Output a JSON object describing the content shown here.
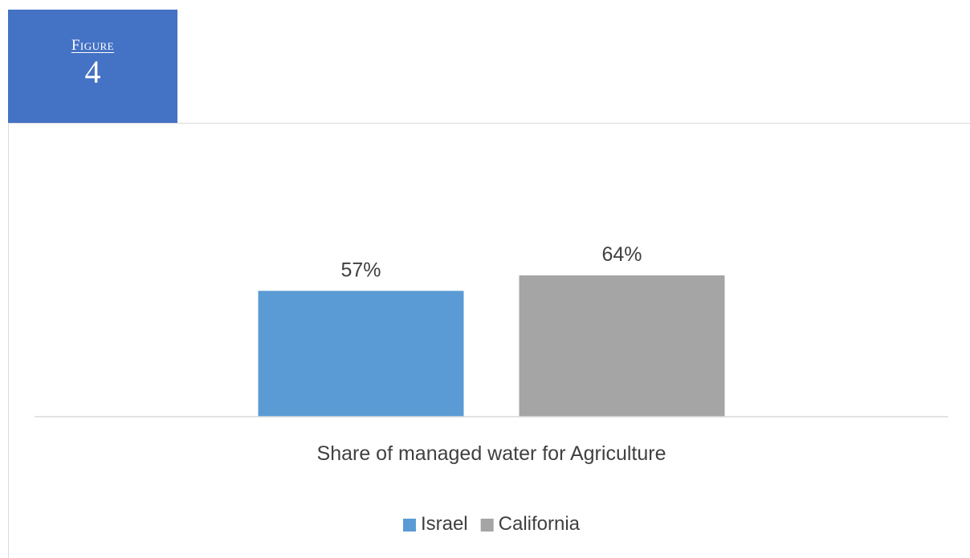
{
  "figure": {
    "label": "Figure",
    "number": "4"
  },
  "colors": {
    "badge": "#4472c4",
    "israel": "#5b9bd5",
    "california": "#a5a5a5",
    "axis": "#d9d9d9"
  },
  "chart_data": {
    "type": "bar",
    "categories": [
      "Share of managed water for Agriculture"
    ],
    "series": [
      {
        "name": "Israel",
        "values": [
          57
        ],
        "color": "#5b9bd5"
      },
      {
        "name": "California",
        "values": [
          64
        ],
        "color": "#a5a5a5"
      }
    ],
    "value_format": "percent",
    "title": "",
    "xlabel": "",
    "ylabel": "",
    "ylim": [
      0,
      100
    ],
    "grid": false,
    "legend": "bottom"
  }
}
